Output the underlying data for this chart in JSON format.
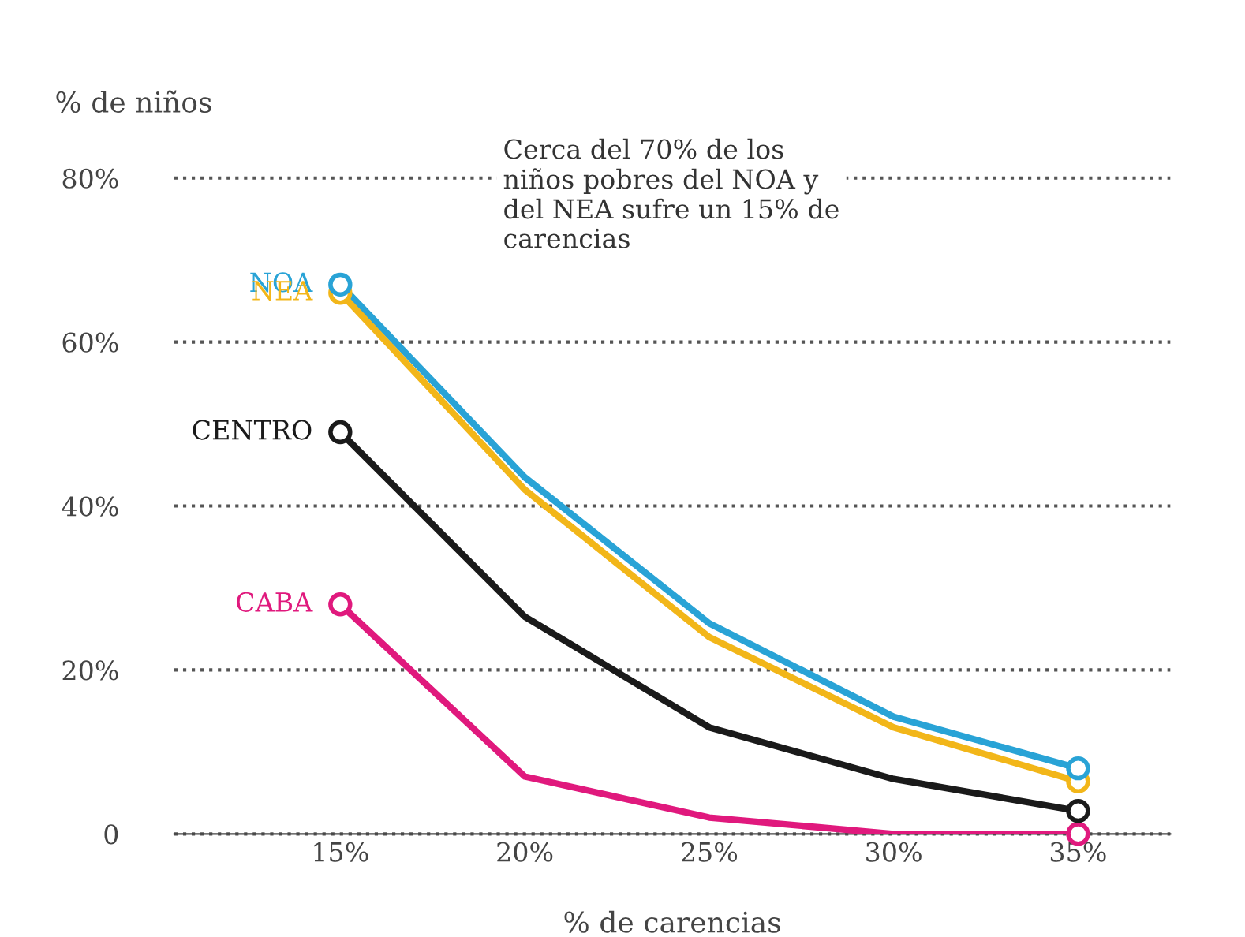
{
  "chart_data": {
    "type": "line",
    "xlabel": "% de carencias",
    "ylabel": "% de niños",
    "categories": [
      "15%",
      "20%",
      "25%",
      "30%",
      "35%"
    ],
    "series": [
      {
        "name": "NOA",
        "color": "#29a3d6",
        "values": [
          67,
          43.5,
          25.7,
          14.3,
          8
        ]
      },
      {
        "name": "NEA",
        "color": "#f2b619",
        "values": [
          66,
          42,
          24,
          13,
          6.4
        ]
      },
      {
        "name": "CENTRO",
        "color": "#1a1a1a",
        "values": [
          49,
          26.5,
          13,
          6.7,
          2.8
        ]
      },
      {
        "name": "CABA",
        "color": "#e0197d",
        "values": [
          28,
          7,
          2,
          0,
          0
        ]
      }
    ],
    "ylim": [
      0,
      80
    ],
    "yticks": [
      0,
      {
        "value": 20,
        "label": "20%"
      },
      {
        "value": 40,
        "label": "40%"
      },
      {
        "value": 60,
        "label": "60%"
      },
      {
        "value": 80,
        "label": "80%"
      }
    ],
    "grid": "y",
    "line_style": "solid",
    "legend": false,
    "annotations": [
      "Cerca del 70% de los\nniños pobres del NOA y\ndel NEA sufre un 15% de\ncarencias"
    ]
  }
}
